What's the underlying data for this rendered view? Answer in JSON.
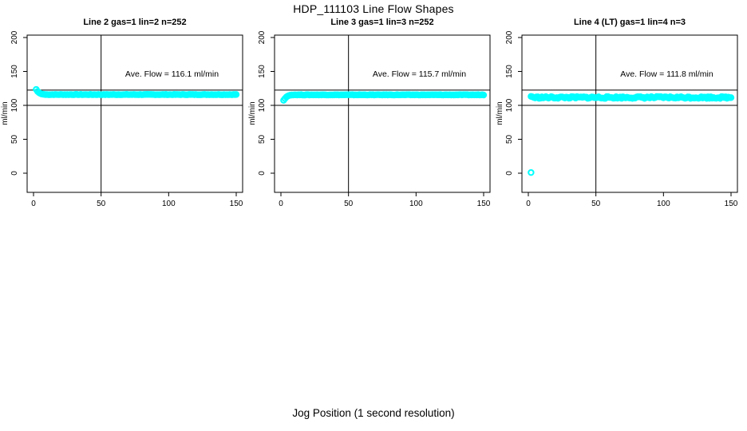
{
  "page": {
    "title": "HDP_111103  Line Flow Shapes",
    "xlabel": "Jog Position (1 second resolution)"
  },
  "colors": {
    "points": "#00FFFF",
    "axis": "#000000",
    "background": "#FFFFFF"
  },
  "chart_data": [
    {
      "type": "scatter",
      "title": "Line 2 gas=1 lin=2 n=252",
      "line": "Line 2",
      "gas": 1,
      "lin": 2,
      "n": 252,
      "annotation": "Ave. Flow =  116.1  ml/min",
      "ave_flow": 116.1,
      "ave_flow_units": "ml/min",
      "ylabel": "ml/min",
      "xlim": [
        0,
        150
      ],
      "ylim": [
        0,
        200
      ],
      "x_ticks": [
        0,
        50,
        100,
        150
      ],
      "y_ticks": [
        0,
        50,
        100,
        150,
        200
      ],
      "ref_lines_h": [
        122.5,
        100
      ],
      "ref_lines_v": [
        50
      ],
      "series": {
        "name": "flow-points",
        "color": "#00FFFF",
        "lead_in": [
          [
            2,
            123.5
          ],
          [
            3,
            120.5
          ],
          [
            4,
            118.8
          ],
          [
            5,
            117.6
          ],
          [
            6,
            116.8
          ],
          [
            7,
            116.4
          ],
          [
            8,
            116.1
          ]
        ],
        "plateau": {
          "x_start": 9,
          "x_end": 150,
          "step": 1,
          "y": 115.9,
          "wobble": 0.3
        },
        "outliers": []
      }
    },
    {
      "type": "scatter",
      "title": "Line 3 gas=1 lin=3 n=252",
      "line": "Line 3",
      "gas": 1,
      "lin": 3,
      "n": 252,
      "annotation": "Ave. Flow =  115.7  ml/min",
      "ave_flow": 115.7,
      "ave_flow_units": "ml/min",
      "ylabel": "ml/min",
      "xlim": [
        0,
        150
      ],
      "ylim": [
        0,
        200
      ],
      "x_ticks": [
        0,
        50,
        100,
        150
      ],
      "y_ticks": [
        0,
        50,
        100,
        150,
        200
      ],
      "ref_lines_h": [
        122.5,
        100
      ],
      "ref_lines_v": [
        50
      ],
      "series": {
        "name": "flow-points",
        "color": "#00FFFF",
        "lead_in": [
          [
            2,
            107.5
          ],
          [
            3,
            110.0
          ],
          [
            4,
            112.2
          ],
          [
            5,
            113.6
          ],
          [
            6,
            114.5
          ],
          [
            7,
            115.0
          ],
          [
            8,
            115.3
          ]
        ],
        "plateau": {
          "x_start": 9,
          "x_end": 150,
          "step": 1,
          "y": 115.5,
          "wobble": 0.3
        },
        "outliers": []
      }
    },
    {
      "type": "scatter",
      "title": "Line 4 (LT) gas=1 lin=4 n=3",
      "line": "Line 4 (LT)",
      "gas": 1,
      "lin": 4,
      "n": 3,
      "annotation": "Ave. Flow =  111.8  ml/min",
      "ave_flow": 111.8,
      "ave_flow_units": "ml/min",
      "ylabel": "ml/min",
      "xlim": [
        0,
        150
      ],
      "ylim": [
        0,
        200
      ],
      "x_ticks": [
        0,
        50,
        100,
        150
      ],
      "y_ticks": [
        0,
        50,
        100,
        150,
        200
      ],
      "ref_lines_h": [
        122.5,
        100
      ],
      "ref_lines_v": [
        50
      ],
      "series": {
        "name": "flow-points",
        "color": "#00FFFF",
        "lead_in": [
          [
            2,
            113.2
          ],
          [
            3,
            112.6
          ]
        ],
        "plateau": {
          "x_start": 4,
          "x_end": 150,
          "step": 1,
          "y": 111.6,
          "wobble": 1.4
        },
        "outliers": [
          [
            2,
            1
          ]
        ]
      }
    }
  ]
}
